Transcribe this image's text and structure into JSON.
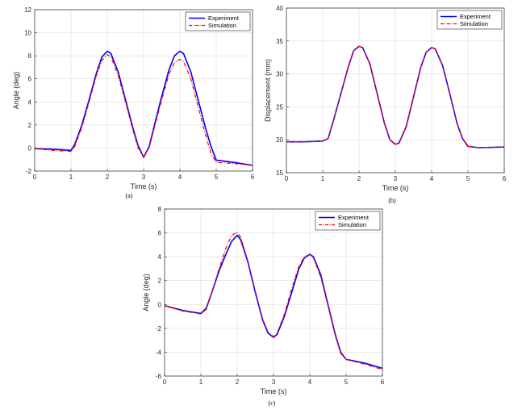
{
  "colors": {
    "experiment": "#0000ff",
    "simulation": "#ff0000",
    "grid": "#dcdcdc",
    "axis": "#262626"
  },
  "chart_data": [
    {
      "type": "line",
      "caption": "(a)",
      "xlabel": "Time (s)",
      "ylabel": "Angle (deg)",
      "xlim": [
        0,
        6
      ],
      "ylim": [
        -2,
        12
      ],
      "xticks": [
        "0",
        "1",
        "2",
        "3",
        "4",
        "5",
        "6"
      ],
      "yticks": [
        "-2",
        "0",
        "2",
        "4",
        "6",
        "8",
        "10",
        "12"
      ],
      "grid": true,
      "legend": "top-right",
      "series": [
        {
          "name": "Experiment",
          "style": "solid",
          "x": [
            0,
            0.5,
            1.0,
            1.1,
            1.3,
            1.5,
            1.7,
            1.85,
            2.0,
            2.1,
            2.3,
            2.5,
            2.7,
            2.85,
            3.0,
            3.15,
            3.3,
            3.5,
            3.7,
            3.85,
            4.0,
            4.1,
            4.3,
            4.5,
            4.7,
            4.85,
            5.0,
            5.5,
            6.0
          ],
          "y": [
            -0.05,
            -0.1,
            -0.2,
            0.3,
            2.0,
            4.2,
            6.5,
            7.9,
            8.4,
            8.2,
            6.6,
            4.2,
            1.8,
            0.2,
            -0.8,
            0.1,
            2.0,
            4.5,
            6.8,
            8.0,
            8.4,
            8.2,
            6.6,
            4.2,
            1.8,
            0.2,
            -1.05,
            -1.25,
            -1.5
          ]
        },
        {
          "name": "Simulation",
          "style": "dashdot",
          "x": [
            0,
            0.5,
            1.0,
            1.1,
            1.3,
            1.5,
            1.7,
            1.85,
            2.0,
            2.1,
            2.3,
            2.5,
            2.7,
            2.85,
            3.0,
            3.15,
            3.3,
            3.5,
            3.7,
            3.85,
            4.0,
            4.1,
            4.3,
            4.5,
            4.7,
            4.85,
            5.0,
            5.5,
            6.0
          ],
          "y": [
            -0.05,
            -0.2,
            -0.3,
            0.1,
            1.8,
            4.0,
            6.3,
            7.6,
            8.1,
            7.9,
            6.3,
            4.0,
            1.6,
            0.0,
            -0.75,
            0.0,
            1.8,
            4.2,
            6.4,
            7.4,
            7.7,
            7.5,
            6.0,
            3.6,
            1.2,
            -0.4,
            -1.25,
            -1.35,
            -1.5
          ]
        }
      ]
    },
    {
      "type": "line",
      "caption": "(b)",
      "xlabel": "Time (s)",
      "ylabel": "Displacement (mm)",
      "xlim": [
        0,
        6
      ],
      "ylim": [
        15,
        40
      ],
      "xticks": [
        "0",
        "1",
        "2",
        "3",
        "4",
        "5",
        "6"
      ],
      "yticks": [
        "15",
        "20",
        "25",
        "30",
        "35",
        "40"
      ],
      "grid": true,
      "legend": "top-right",
      "series": [
        {
          "name": "Experiment",
          "style": "solid",
          "x": [
            0,
            0.5,
            1.0,
            1.15,
            1.3,
            1.5,
            1.7,
            1.85,
            2.0,
            2.1,
            2.3,
            2.5,
            2.7,
            2.85,
            3.0,
            3.1,
            3.3,
            3.5,
            3.7,
            3.85,
            4.0,
            4.1,
            4.3,
            4.5,
            4.7,
            4.85,
            5.0,
            5.3,
            6.0
          ],
          "y": [
            19.7,
            19.7,
            19.8,
            20.2,
            23.0,
            27.0,
            31.0,
            33.5,
            34.2,
            34.0,
            31.5,
            27.0,
            22.5,
            20.0,
            19.3,
            19.5,
            22.0,
            26.5,
            31.0,
            33.3,
            34.0,
            33.8,
            31.3,
            27.0,
            22.5,
            20.2,
            19.0,
            18.8,
            18.9
          ]
        },
        {
          "name": "Simulation",
          "style": "dashdot",
          "x": [
            0,
            0.5,
            1.0,
            1.15,
            1.3,
            1.5,
            1.7,
            1.85,
            2.0,
            2.1,
            2.3,
            2.5,
            2.7,
            2.85,
            3.0,
            3.1,
            3.3,
            3.5,
            3.7,
            3.85,
            4.0,
            4.1,
            4.3,
            4.5,
            4.7,
            4.85,
            5.0,
            5.3,
            6.0
          ],
          "y": [
            19.7,
            19.7,
            19.8,
            20.2,
            23.0,
            27.0,
            31.0,
            33.5,
            34.2,
            34.0,
            31.5,
            27.0,
            22.5,
            20.0,
            19.3,
            19.5,
            22.0,
            26.5,
            31.0,
            33.3,
            34.0,
            33.8,
            31.3,
            27.0,
            22.5,
            20.2,
            19.0,
            18.8,
            18.9
          ]
        }
      ]
    },
    {
      "type": "line",
      "caption": "(c)",
      "xlabel": "Time (s)",
      "ylabel": "Angle (deg)",
      "xlim": [
        0,
        6
      ],
      "ylim": [
        -6,
        8
      ],
      "xticks": [
        "0",
        "1",
        "2",
        "3",
        "4",
        "5",
        "6"
      ],
      "yticks": [
        "-6",
        "-4",
        "-2",
        "0",
        "2",
        "4",
        "6",
        "8"
      ],
      "grid": true,
      "legend": "top-right",
      "series": [
        {
          "name": "Experiment",
          "style": "solid",
          "x": [
            0,
            0.5,
            1.0,
            1.15,
            1.3,
            1.5,
            1.7,
            1.85,
            2.0,
            2.1,
            2.3,
            2.5,
            2.7,
            2.85,
            3.0,
            3.1,
            3.3,
            3.5,
            3.7,
            3.85,
            4.0,
            4.1,
            4.3,
            4.5,
            4.7,
            4.85,
            5.0,
            5.5,
            6.0
          ],
          "y": [
            -0.1,
            -0.5,
            -0.75,
            -0.3,
            1.0,
            2.8,
            4.3,
            5.3,
            5.8,
            5.4,
            3.5,
            1.0,
            -1.3,
            -2.4,
            -2.75,
            -2.5,
            -1.0,
            1.0,
            3.0,
            3.9,
            4.2,
            4.0,
            2.5,
            0.0,
            -2.5,
            -4.0,
            -4.6,
            -4.9,
            -5.35
          ]
        },
        {
          "name": "Simulation",
          "style": "dashdot",
          "x": [
            0,
            0.5,
            1.0,
            1.15,
            1.3,
            1.5,
            1.7,
            1.85,
            2.0,
            2.1,
            2.3,
            2.5,
            2.7,
            2.85,
            3.0,
            3.1,
            3.3,
            3.5,
            3.7,
            3.85,
            4.0,
            4.1,
            4.3,
            4.5,
            4.7,
            4.85,
            5.0,
            5.5,
            6.0
          ],
          "y": [
            -0.1,
            -0.55,
            -0.8,
            -0.4,
            1.0,
            3.0,
            4.8,
            5.8,
            6.05,
            5.6,
            3.6,
            1.1,
            -1.2,
            -2.3,
            -2.7,
            -2.4,
            -0.8,
            1.3,
            3.2,
            4.0,
            4.2,
            3.9,
            2.3,
            -0.1,
            -2.6,
            -4.1,
            -4.6,
            -5.0,
            -5.45
          ]
        }
      ]
    }
  ]
}
